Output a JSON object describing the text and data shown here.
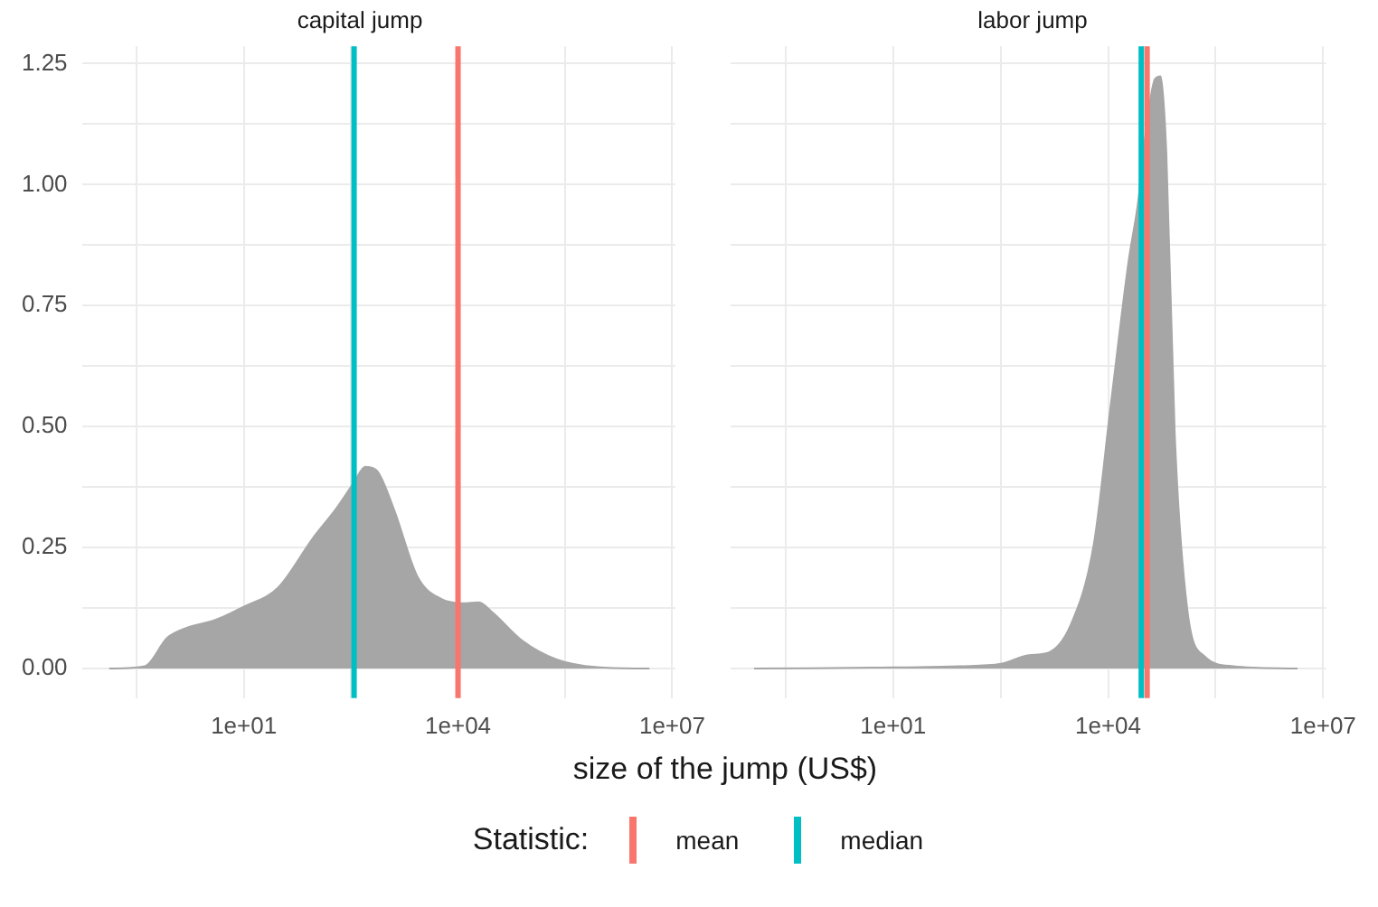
{
  "chart_data": [
    {
      "type": "area",
      "title": "capital jump",
      "xlabel": "size of the jump (US$)",
      "legend_title": "Statistic:",
      "legend": "bottom",
      "log": "x",
      "grid": true,
      "x": [
        0.13,
        0.41,
        0.85,
        1.5,
        3.9,
        10,
        30,
        93,
        195,
        350,
        500,
        720,
        1260,
        2700,
        5800,
        12000,
        19500,
        31000,
        79000,
        240000,
        890000,
        4800000
      ],
      "series": [
        {
          "color": "#a6a6a6",
          "values": [
            0,
            0.005,
            0.064,
            0.083,
            0.1,
            0.128,
            0.167,
            0.27,
            0.33,
            0.385,
            0.417,
            0.41,
            0.33,
            0.19,
            0.144,
            0.135,
            0.137,
            0.115,
            0.058,
            0.019,
            0.003,
            0
          ]
        }
      ],
      "xlim": [
        0.054,
        11000000
      ],
      "xticks": [
        {
          "value": 0.316,
          "label": null
        },
        {
          "value": 10,
          "label": "1e+01"
        },
        {
          "value": 316,
          "label": null
        },
        {
          "value": 10000,
          "label": "1e+04"
        },
        {
          "value": 316000,
          "label": null
        },
        {
          "value": 10000000,
          "label": "1e+07"
        }
      ],
      "ylim": [
        -0.061,
        1.286
      ],
      "yticks": [
        {
          "value": 0,
          "label": "0.00"
        },
        {
          "value": 0.125,
          "label": null
        },
        {
          "value": 0.25,
          "label": "0.25"
        },
        {
          "value": 0.375,
          "label": null
        },
        {
          "value": 0.5,
          "label": "0.50"
        },
        {
          "value": 0.625,
          "label": null
        },
        {
          "value": 0.75,
          "label": "0.75"
        },
        {
          "value": 0.875,
          "label": null
        },
        {
          "value": 1,
          "label": "1.00"
        },
        {
          "value": 1.125,
          "label": null
        },
        {
          "value": 1.25,
          "label": "1.25"
        }
      ],
      "ref_lines": [
        {
          "axis": "x",
          "value": 10000,
          "label": "mean",
          "color": "#f8766d"
        },
        {
          "axis": "x",
          "value": 350,
          "label": "median",
          "color": "#00bfc4"
        }
      ]
    },
    {
      "type": "area",
      "title": "labor jump",
      "log": "x",
      "grid": true,
      "tick_labels": "x",
      "x": [
        0.115,
        5.1,
        85,
        320,
        790,
        1400,
        3000,
        6300,
        11000,
        19500,
        26000,
        34000,
        45000,
        54000,
        65000,
        85000,
        126000,
        220000,
        560000,
        4400000
      ],
      "series": [
        {
          "color": "#a6a6a6",
          "values": [
            0,
            0.002,
            0.005,
            0.01,
            0.028,
            0.032,
            0.09,
            0.256,
            0.55,
            0.846,
            0.96,
            1.115,
            1.218,
            1.224,
            1.064,
            0.487,
            0.128,
            0.026,
            0.005,
            0
          ]
        }
      ],
      "xlim": [
        0.054,
        11000000
      ],
      "xticks": [
        {
          "value": 0.316,
          "label": null
        },
        {
          "value": 10,
          "label": "1e+01"
        },
        {
          "value": 316,
          "label": null
        },
        {
          "value": 10000,
          "label": "1e+04"
        },
        {
          "value": 316000,
          "label": null
        },
        {
          "value": 10000000,
          "label": "1e+07"
        }
      ],
      "ylim": [
        -0.061,
        1.286
      ],
      "yticks": [
        {
          "value": 0,
          "label": null
        },
        {
          "value": 0.125,
          "label": null
        },
        {
          "value": 0.25,
          "label": null
        },
        {
          "value": 0.375,
          "label": null
        },
        {
          "value": 0.5,
          "label": null
        },
        {
          "value": 0.625,
          "label": null
        },
        {
          "value": 0.75,
          "label": null
        },
        {
          "value": 0.875,
          "label": null
        },
        {
          "value": 1,
          "label": null
        },
        {
          "value": 1.125,
          "label": null
        },
        {
          "value": 1.25,
          "label": null
        }
      ],
      "ref_lines": [
        {
          "axis": "x",
          "value": 35000,
          "color": "#f8766d"
        },
        {
          "axis": "x",
          "value": 29000,
          "color": "#00bfc4"
        }
      ]
    }
  ]
}
